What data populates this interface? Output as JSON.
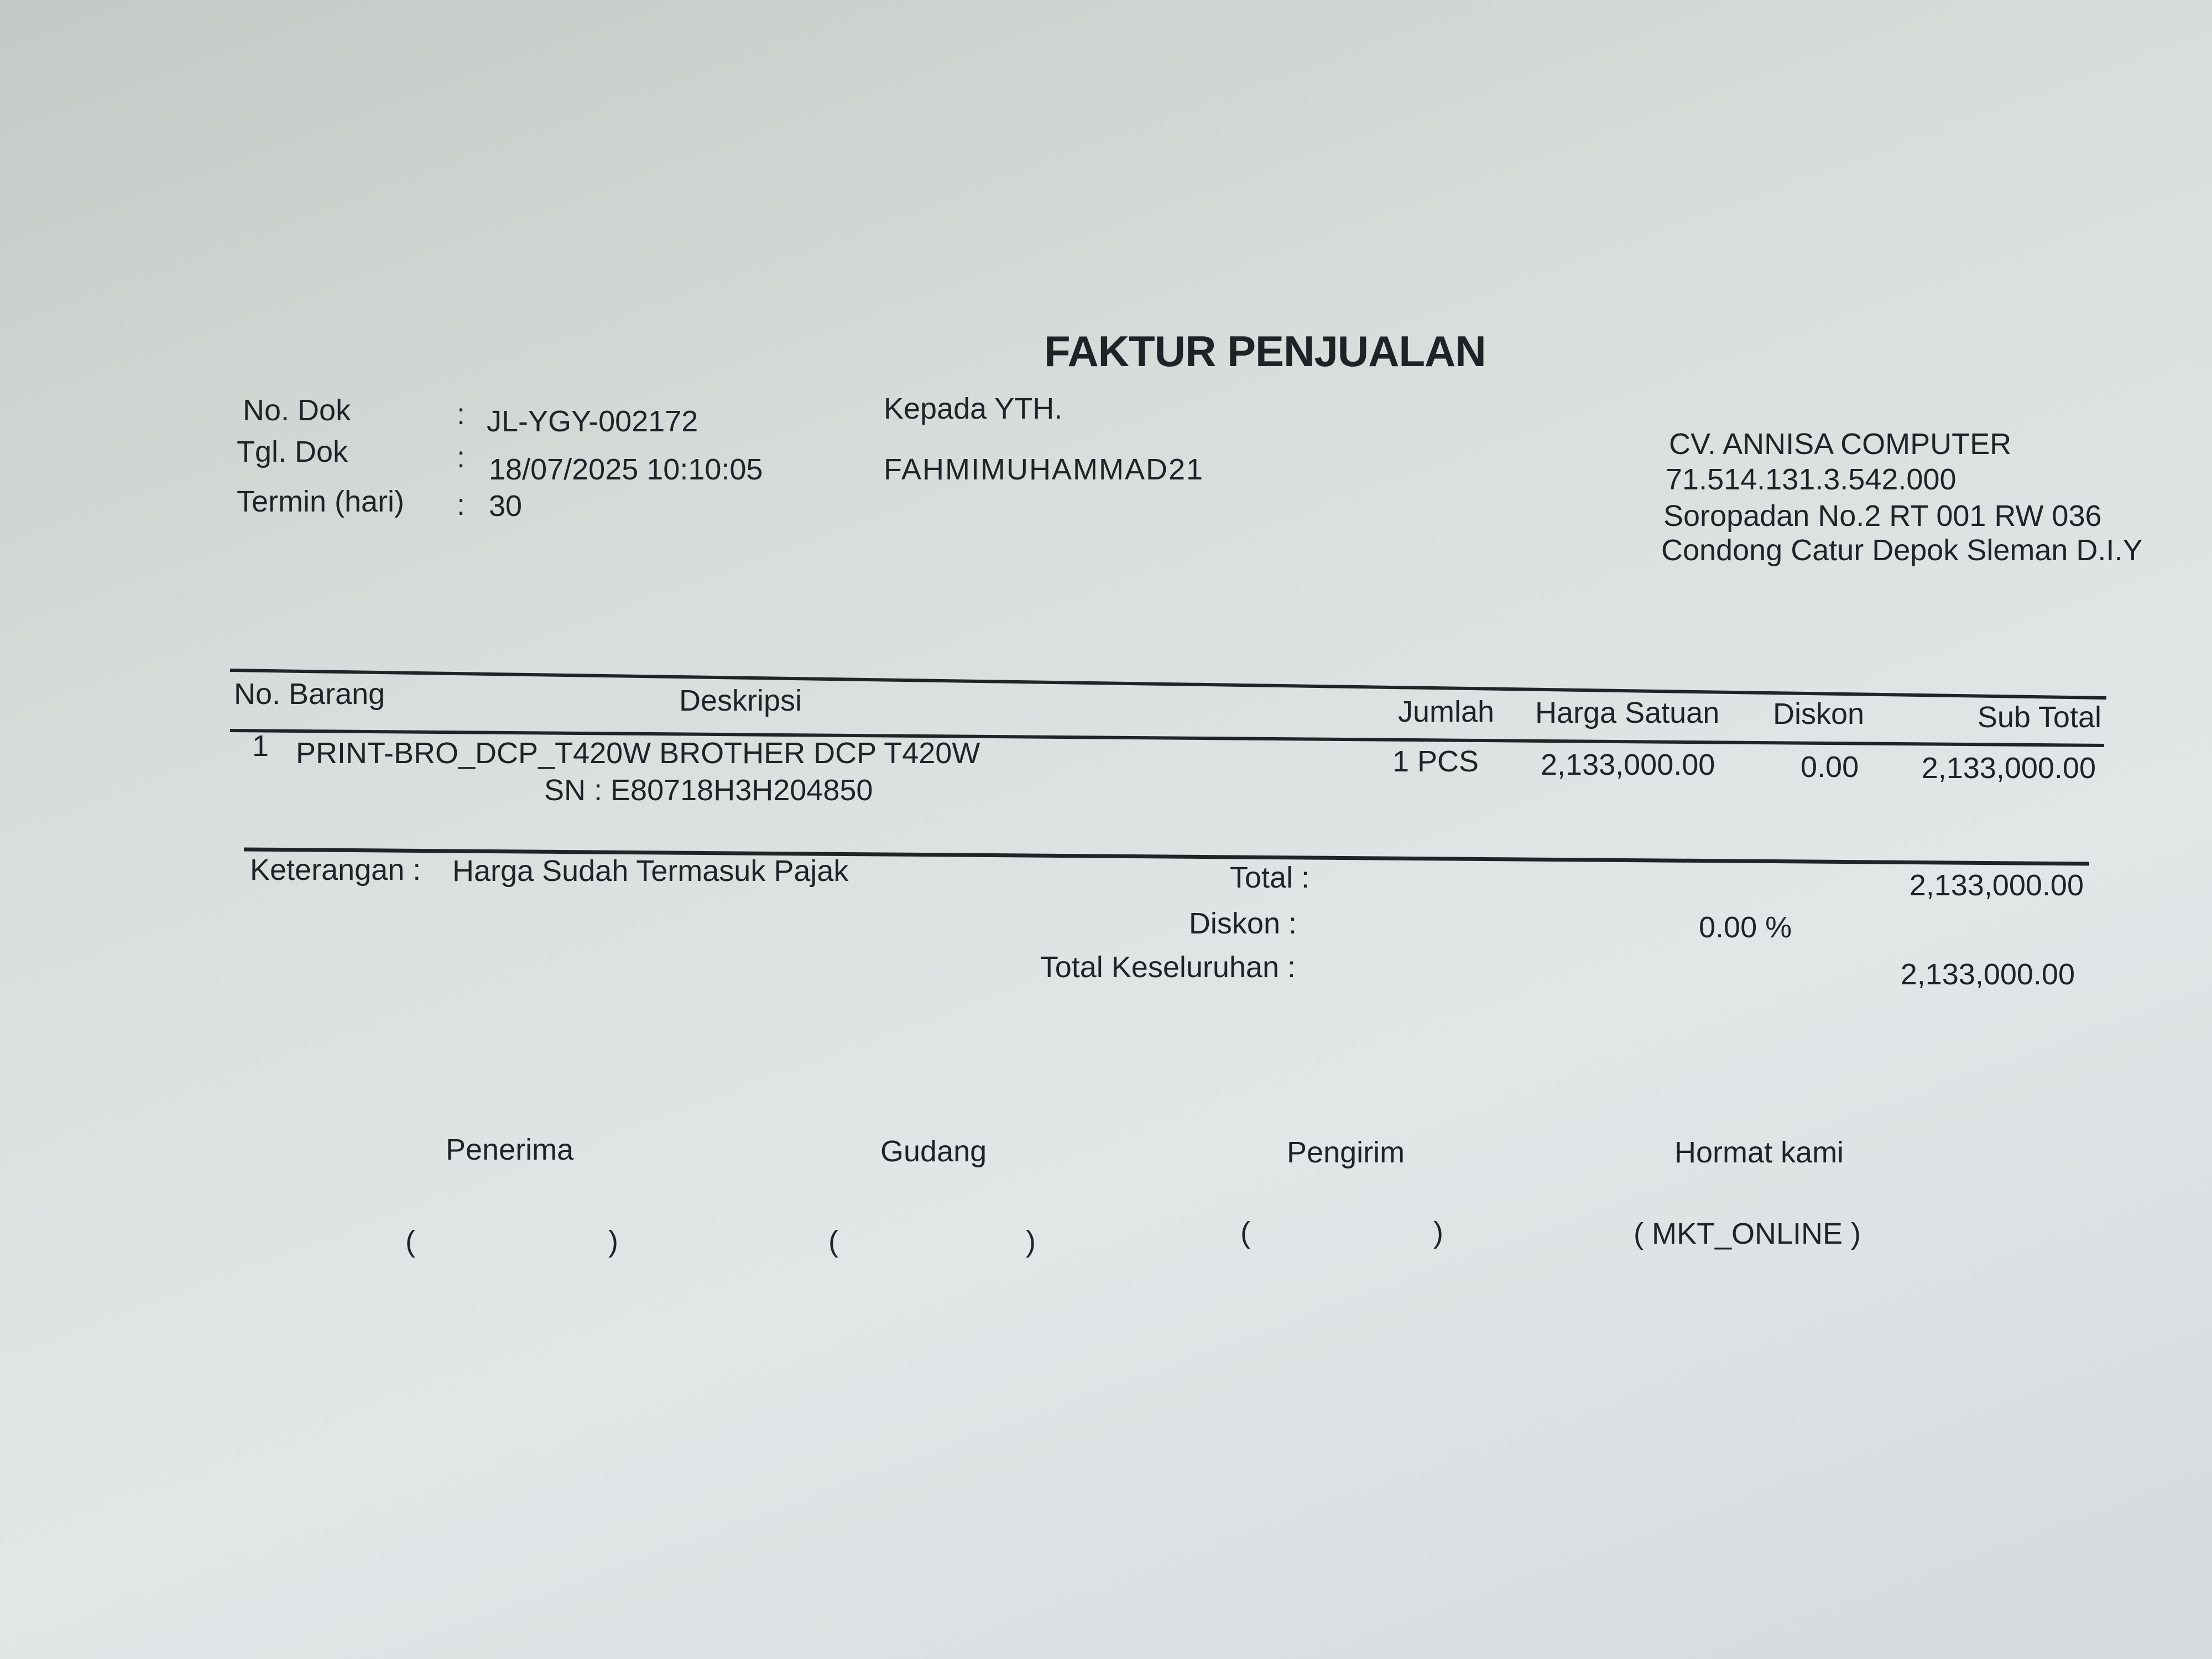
{
  "title": "FAKTUR PENJUALAN",
  "doc_info": {
    "no_dok_label": "No. Dok",
    "no_dok_value": "JL-YGY-002172",
    "tgl_dok_label": "Tgl. Dok",
    "tgl_dok_value": "18/07/2025 10:10:05",
    "termin_label": "Termin (hari)",
    "termin_value": "30",
    "separator": ":"
  },
  "recipient": {
    "label": "Kepada YTH.",
    "name": "FAHMIMUHAMMAD21"
  },
  "company": {
    "name": "CV. ANNISA COMPUTER",
    "npwp": "71.514.131.3.542.000",
    "address_1": "Soropadan No.2  RT 001 RW 036",
    "address_2": "Condong Catur Depok Sleman D.I.Y"
  },
  "table": {
    "headers": {
      "no_barang": "No. Barang",
      "deskripsi": "Deskripsi",
      "jumlah": "Jumlah",
      "harga_satuan": "Harga Satuan",
      "diskon": "Diskon",
      "sub_total": "Sub Total"
    },
    "rows": [
      {
        "no": "1",
        "item": "PRINT-BRO_DCP_T420W BROTHER DCP T420W",
        "sn": "SN  : E80718H3H204850",
        "jumlah": "1 PCS",
        "harga_satuan": "2,133,000.00",
        "diskon": "0.00",
        "sub_total": "2,133,000.00"
      }
    ]
  },
  "summary": {
    "keterangan_label": "Keterangan :",
    "keterangan_value": "Harga Sudah Termasuk Pajak",
    "total_label": "Total :",
    "total_value": "2,133,000.00",
    "diskon_label": "Diskon :",
    "diskon_value": "0.00  %",
    "grand_total_label": "Total Keseluruhan :",
    "grand_total_value": "2,133,000.00"
  },
  "signatures": {
    "penerima": "Penerima",
    "gudang": "Gudang",
    "pengirim": "Pengirim",
    "hormat_kami": "Hormat kami",
    "open": "(",
    "close": ")",
    "hormat_kami_name": "( MKT_ONLINE )"
  }
}
